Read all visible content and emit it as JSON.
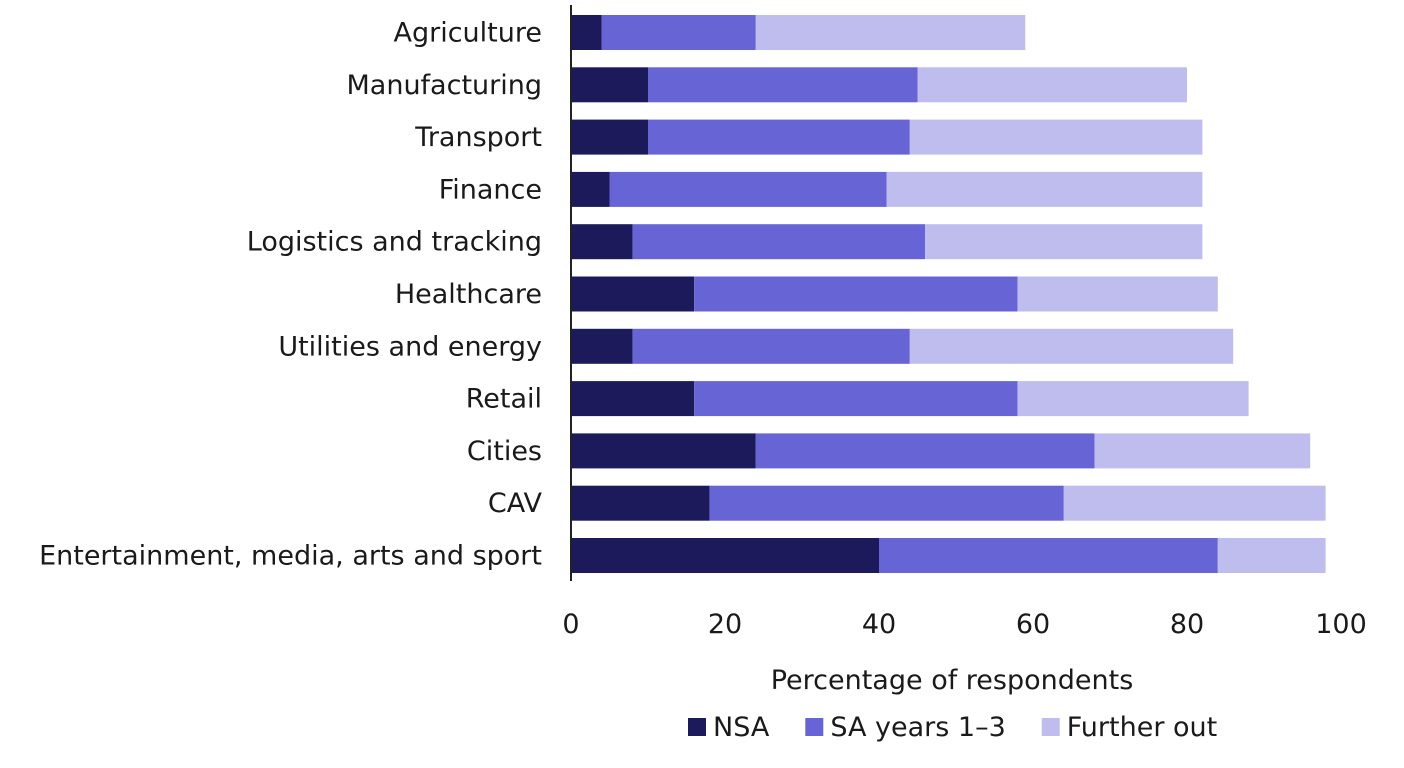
{
  "chart_data": {
    "type": "bar",
    "orientation": "horizontal",
    "stacked": true,
    "categories": [
      "Agriculture",
      "Manufacturing",
      "Transport",
      "Finance",
      "Logistics and tracking",
      "Healthcare",
      "Utilities and energy",
      "Retail",
      "Cities",
      "CAV",
      "Entertainment, media, arts and sport"
    ],
    "series": [
      {
        "name": "NSA",
        "color": "#1c1a5a",
        "values": [
          4,
          10,
          10,
          5,
          8,
          16,
          8,
          16,
          24,
          18,
          40
        ]
      },
      {
        "name": "SA years 1–3",
        "color": "#6764d6",
        "values": [
          20,
          35,
          34,
          36,
          38,
          42,
          36,
          42,
          44,
          46,
          44
        ]
      },
      {
        "name": "Further out",
        "color": "#bfbdee",
        "values": [
          35,
          35,
          38,
          41,
          36,
          26,
          42,
          30,
          28,
          34,
          14
        ]
      }
    ],
    "xlabel": "Percentage of respondents",
    "xlim": [
      0,
      100
    ],
    "xticks": [
      "0",
      "20",
      "40",
      "60",
      "80",
      "100"
    ],
    "grid": false,
    "legend_position": "bottom"
  }
}
